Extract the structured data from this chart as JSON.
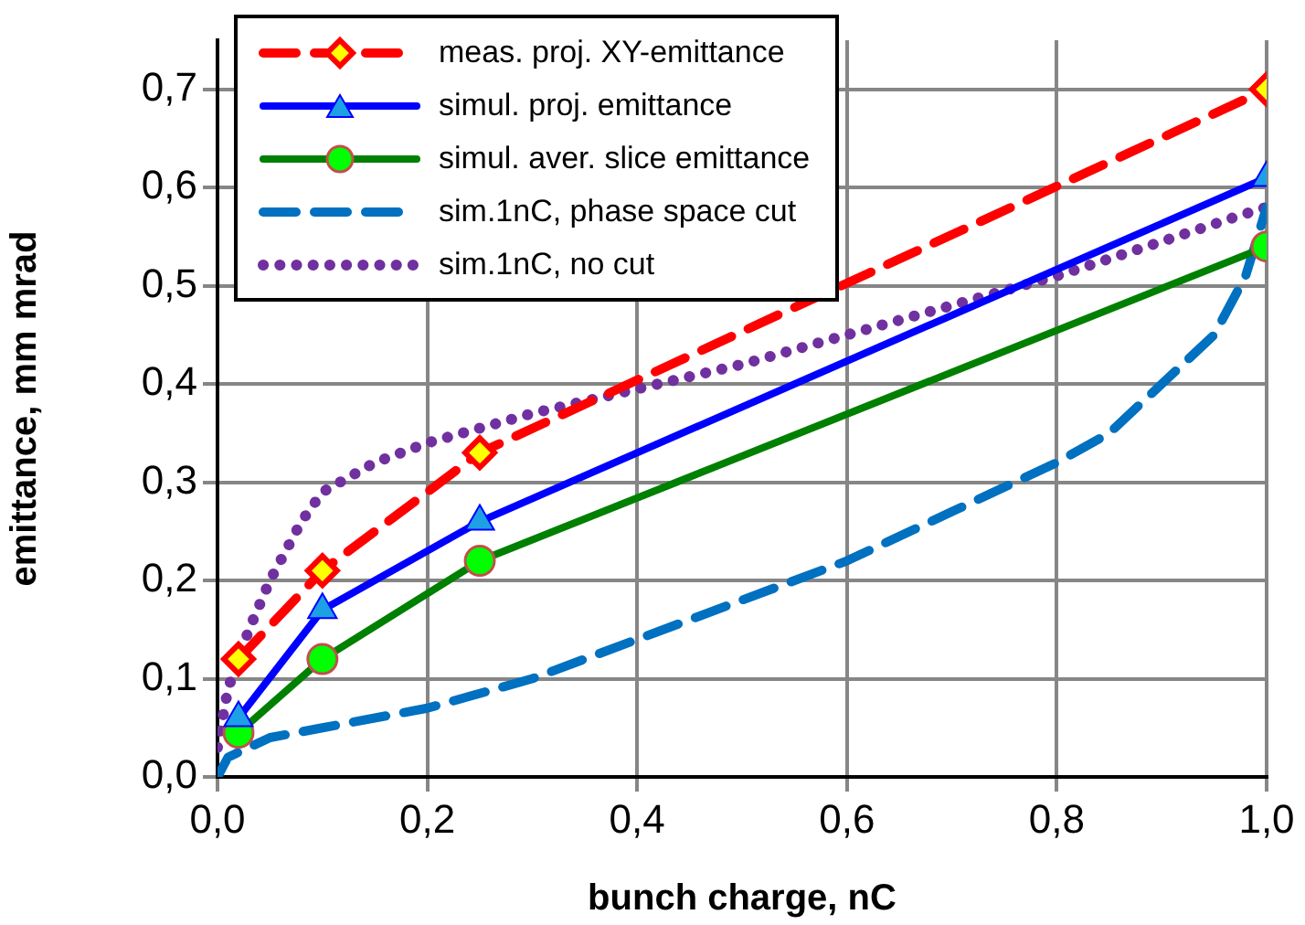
{
  "chart_data": {
    "type": "line",
    "xlabel": "bunch charge, nC",
    "ylabel": "emittance, mm mrad",
    "xlim": [
      0,
      1
    ],
    "xticks": [
      {
        "value": 0,
        "label": "0,0"
      },
      {
        "value": 0.2,
        "label": "0,2"
      },
      {
        "value": 0.4,
        "label": "0,4"
      },
      {
        "value": 0.6,
        "label": "0,6"
      },
      {
        "value": 0.8,
        "label": "0,8"
      },
      {
        "value": 1,
        "label": "1,0"
      }
    ],
    "ylim": [
      0,
      0.75
    ],
    "yticks": [
      {
        "value": 0,
        "label": "0,0"
      },
      {
        "value": 0.1,
        "label": "0,1"
      },
      {
        "value": 0.2,
        "label": "0,2"
      },
      {
        "value": 0.3,
        "label": "0,3"
      },
      {
        "value": 0.4,
        "label": "0,4"
      },
      {
        "value": 0.5,
        "label": "0,5"
      },
      {
        "value": 0.6,
        "label": "0,6"
      },
      {
        "value": 0.7,
        "label": "0,7"
      }
    ],
    "grid": true,
    "legend": "top left",
    "series": [
      {
        "name": "meas. proj. XY-emittance",
        "color": "#ff0000",
        "line_style": "dashed",
        "marker": "diamond",
        "x": [
          0.02,
          0.1,
          0.25,
          1.0
        ],
        "values": [
          0.12,
          0.21,
          0.33,
          0.7
        ]
      },
      {
        "name": "simul. proj. emittance",
        "color": "#0000ff",
        "line_style": "solid",
        "marker": "triangle",
        "x": [
          0.02,
          0.1,
          0.25,
          1.0
        ],
        "values": [
          0.06,
          0.17,
          0.26,
          0.61
        ]
      },
      {
        "name": "simul. aver. slice emittance",
        "color": "#008000",
        "line_style": "solid",
        "marker": "circle",
        "x": [
          0.02,
          0.1,
          0.25,
          1.0
        ],
        "values": [
          0.045,
          0.12,
          0.22,
          0.54
        ]
      },
      {
        "name": "sim.1nC, phase space cut",
        "color": "#0070c0",
        "line_style": "dashed",
        "marker": "none",
        "x": [
          0,
          0.01,
          0.05,
          0.1,
          0.2,
          0.3,
          0.4,
          0.5,
          0.6,
          0.7,
          0.8,
          0.85,
          0.9,
          0.95,
          0.98,
          1.0
        ],
        "values": [
          0,
          0.02,
          0.04,
          0.05,
          0.07,
          0.1,
          0.14,
          0.18,
          0.22,
          0.27,
          0.32,
          0.35,
          0.4,
          0.45,
          0.51,
          0.58
        ]
      },
      {
        "name": "sim.1nC, no cut",
        "color": "#7030a0",
        "line_style": "dotted",
        "marker": "none",
        "x": [
          0,
          0.01,
          0.02,
          0.03,
          0.05,
          0.08,
          0.1,
          0.15,
          0.2,
          0.25,
          0.3,
          0.4,
          0.5,
          0.6,
          0.7,
          0.8,
          0.9,
          0.97,
          1.0
        ],
        "values": [
          0.03,
          0.09,
          0.12,
          0.15,
          0.2,
          0.26,
          0.29,
          0.32,
          0.34,
          0.355,
          0.37,
          0.395,
          0.42,
          0.45,
          0.48,
          0.51,
          0.545,
          0.57,
          0.58
        ]
      }
    ]
  }
}
